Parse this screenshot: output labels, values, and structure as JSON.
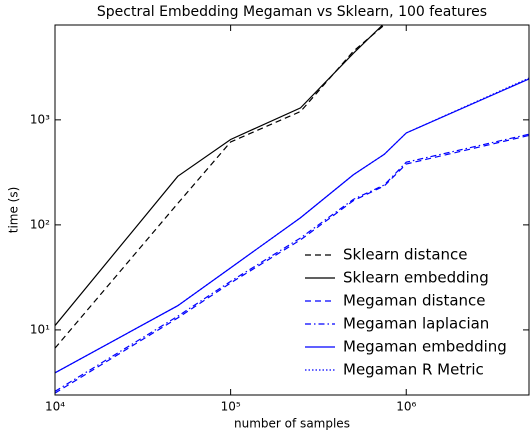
{
  "chart_data": {
    "type": "line",
    "title": "Spectral Embedding Megaman vs Sklearn, 100 features",
    "x_label": "number of samples",
    "y_label": "time (s)",
    "xscale": "log",
    "yscale": "log",
    "x": [
      10000,
      50000,
      100000,
      250000,
      500000,
      750000,
      1000000,
      5000000
    ],
    "series": [
      {
        "name": "Sklearn distance",
        "color": "#000000",
        "linestyle": "dashed",
        "values": [
          6.7,
          160,
          616,
          1200,
          4500,
          8000,
          null,
          null
        ]
      },
      {
        "name": "Sklearn embedding",
        "color": "#000000",
        "linestyle": "solid",
        "values": [
          11,
          290,
          650,
          1300,
          4300,
          8300,
          null,
          null
        ]
      },
      {
        "name": "Megaman distance",
        "color": "#0000ff",
        "linestyle": "dashed",
        "values": [
          2.5,
          13,
          28,
          72,
          170,
          235,
          380,
          710
        ]
      },
      {
        "name": "Megaman laplacian",
        "color": "#0000ff",
        "linestyle": "dashdot",
        "values": [
          2.6,
          13.5,
          29,
          75,
          175,
          240,
          395,
          730
        ]
      },
      {
        "name": "Megaman embedding",
        "color": "#0000ff",
        "linestyle": "solid",
        "values": [
          3.9,
          17,
          39,
          117,
          300,
          470,
          750,
          2450
        ]
      },
      {
        "name": "Megaman R Metric",
        "color": "#0000ff",
        "linestyle": "dotted",
        "values": [
          3.9,
          17,
          39,
          117,
          300,
          470,
          750,
          2500
        ]
      }
    ],
    "xlim": [
      10000,
      5000000
    ],
    "ylim": [
      2.4,
      8000
    ],
    "xticks": [
      {
        "value": 10000,
        "label": "10⁴"
      },
      {
        "value": 100000,
        "label": "10⁵"
      },
      {
        "value": 1000000,
        "label": "10⁶"
      }
    ],
    "yticks": [
      {
        "value": 10,
        "label": "10¹"
      },
      {
        "value": 100,
        "label": "10²"
      },
      {
        "value": 1000,
        "label": "10³"
      }
    ],
    "legend": "lower right"
  }
}
